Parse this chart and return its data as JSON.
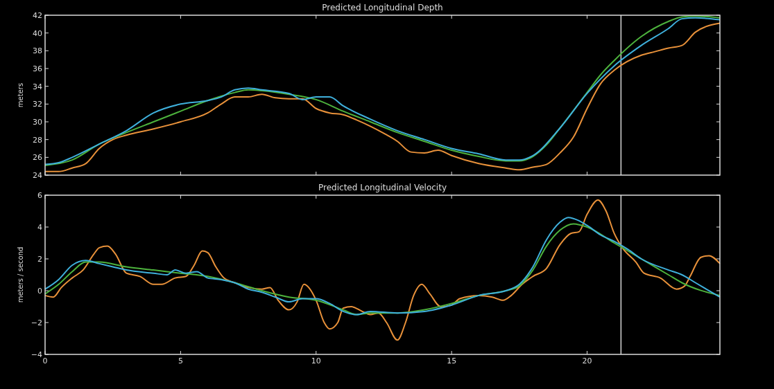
{
  "chart_data": [
    {
      "type": "line",
      "title": "Predicted Longitudinal Depth",
      "ylabel": "meters",
      "xlim": [
        0,
        24.9
      ],
      "xticks": [
        0,
        5,
        10,
        15,
        20
      ],
      "ylim": [
        24,
        42
      ],
      "yticks": [
        24,
        26,
        28,
        30,
        32,
        34,
        36,
        38,
        40,
        42
      ],
      "tick_labels": "y",
      "grid": false,
      "marker": "none",
      "line_style": "solid",
      "ref_lines": [
        {
          "axis": "x",
          "value": 21.25,
          "color": "#d8d8d8"
        }
      ],
      "series": [
        {
          "color": "#e8913a",
          "x": [
            0,
            0.5,
            1,
            1.5,
            2,
            2.5,
            3,
            4,
            5,
            6,
            6.5,
            7,
            7.5,
            8,
            8.5,
            9,
            9.5,
            10,
            10.5,
            11,
            11.5,
            12,
            12.5,
            13,
            13.5,
            14,
            14.5,
            15,
            16,
            17,
            17.5,
            18,
            18.5,
            19,
            19.5,
            20,
            20.5,
            21,
            22,
            22.5,
            23,
            23.5,
            24,
            24.9
          ],
          "values": [
            24.4,
            24.4,
            24.8,
            25.3,
            27,
            28,
            28.5,
            29.2,
            30,
            31,
            32,
            32.8,
            32.8,
            33.1,
            32.7,
            32.6,
            32.6,
            31.5,
            31,
            30.8,
            30.2,
            29.5,
            28.7,
            27.8,
            26.6,
            26.5,
            26.8,
            26.2,
            25.3,
            24.8,
            24.6,
            24.9,
            25.2,
            26.5,
            28.3,
            31.5,
            34.3,
            35.8,
            37.5,
            37.9,
            38.3,
            38.6,
            40.1,
            41.1
          ]
        },
        {
          "color": "#4db33d",
          "x": [
            0,
            1,
            2,
            3,
            4,
            5,
            6,
            7,
            7.5,
            8,
            9,
            10,
            11,
            12,
            13,
            14,
            15,
            16,
            17,
            17.5,
            18,
            18.5,
            19,
            20,
            20.5,
            21,
            22,
            23,
            23.5,
            24,
            24.9
          ],
          "values": [
            25.1,
            25.7,
            27.5,
            28.8,
            30,
            31.2,
            32.4,
            33.3,
            33.6,
            33.5,
            33.1,
            32.5,
            31.2,
            30,
            28.8,
            27.8,
            26.8,
            26.1,
            25.6,
            25.6,
            26.1,
            27.4,
            29.3,
            33.3,
            35.3,
            36.9,
            39.6,
            41.3,
            41.8,
            41.9,
            41.7
          ]
        },
        {
          "color": "#3fb0dc",
          "x": [
            0,
            0.5,
            1,
            2,
            3,
            4,
            5,
            6,
            6.5,
            7,
            7.5,
            8,
            9,
            9.5,
            10,
            10.5,
            11,
            12,
            13,
            14,
            15,
            16,
            17,
            17.5,
            18,
            19,
            20,
            21,
            22,
            23,
            23.5,
            24,
            24.9
          ],
          "values": [
            25.2,
            25.4,
            26,
            27.5,
            29,
            31,
            32,
            32.4,
            32.8,
            33.6,
            33.8,
            33.6,
            33.2,
            32.5,
            32.8,
            32.8,
            31.8,
            30.3,
            29,
            28,
            27,
            26.4,
            25.7,
            25.7,
            26.2,
            29.3,
            33.2,
            36.3,
            38.6,
            40.5,
            41.6,
            41.7,
            41.5
          ]
        }
      ]
    },
    {
      "type": "line",
      "title": "Predicted Longitudinal Velocity",
      "ylabel": "meters / second",
      "xlim": [
        0,
        24.9
      ],
      "xticks": [
        0,
        5,
        10,
        15,
        20
      ],
      "ylim": [
        -4,
        6
      ],
      "yticks": [
        -4,
        -2,
        0,
        2,
        4,
        6
      ],
      "grid": false,
      "marker": "none",
      "line_style": "solid",
      "ref_lines": [
        {
          "axis": "x",
          "value": 21.25,
          "color": "#d8d8d8"
        }
      ],
      "series": [
        {
          "color": "#e8913a",
          "x": [
            0,
            0.3,
            0.6,
            1,
            1.4,
            1.8,
            2,
            2.3,
            2.6,
            3,
            3.5,
            4,
            4.3,
            4.8,
            5.2,
            5.5,
            5.8,
            6,
            6.3,
            6.6,
            7,
            7.5,
            8,
            8.3,
            8.6,
            9,
            9.3,
            9.55,
            10,
            10.3,
            10.5,
            10.8,
            11,
            11.3,
            11.7,
            12,
            12.3,
            12.6,
            13,
            13.3,
            13.6,
            13.9,
            14.2,
            14.6,
            15,
            15.3,
            16,
            16.5,
            16.9,
            17.2,
            17.6,
            18,
            18.5,
            19,
            19.4,
            19.7,
            20,
            20.4,
            20.7,
            21,
            21.3,
            21.8,
            22.1,
            22.7,
            23.3,
            23.6,
            23.8,
            24.2,
            24.5,
            24.9
          ],
          "values": [
            -0.3,
            -0.4,
            0.2,
            0.8,
            1.3,
            2.3,
            2.7,
            2.8,
            2.3,
            1.1,
            0.9,
            0.4,
            0.4,
            0.8,
            0.9,
            1.6,
            2.5,
            2.4,
            1.5,
            0.8,
            0.5,
            0.2,
            0.1,
            0.2,
            -0.6,
            -1.2,
            -0.7,
            0.4,
            -0.6,
            -2,
            -2.4,
            -2,
            -1.1,
            -1,
            -1.3,
            -1.5,
            -1.4,
            -2,
            -3.1,
            -2,
            -0.3,
            0.4,
            -0.2,
            -1,
            -0.9,
            -0.5,
            -0.3,
            -0.4,
            -0.6,
            -0.3,
            0.4,
            0.9,
            1.4,
            2.9,
            3.6,
            3.7,
            4.8,
            5.7,
            5,
            3.6,
            2.7,
            1.8,
            1.1,
            0.8,
            0.1,
            0.3,
            0.9,
            2.1,
            2.2,
            1.7
          ]
        },
        {
          "color": "#4db33d",
          "x": [
            0,
            0.5,
            1,
            1.5,
            2,
            3,
            4,
            5,
            6,
            7,
            8,
            9,
            10,
            11,
            11.5,
            12,
            13,
            14,
            15,
            16,
            17,
            17.5,
            18,
            18.5,
            19,
            19.5,
            20,
            21,
            22,
            23,
            23.5,
            24.9
          ],
          "values": [
            -0.2,
            0.4,
            1.2,
            1.8,
            1.8,
            1.5,
            1.3,
            1.1,
            0.9,
            0.5,
            0,
            -0.4,
            -0.6,
            -1.2,
            -1.5,
            -1.4,
            -1.4,
            -1.2,
            -0.8,
            -0.3,
            0,
            0.3,
            1.3,
            2.8,
            3.8,
            4.2,
            4,
            3,
            2,
            1,
            0.5,
            -0.3
          ]
        },
        {
          "color": "#3fb0dc",
          "x": [
            0,
            0.5,
            1,
            1.5,
            2,
            2.5,
            3,
            4,
            4.5,
            4.8,
            5.2,
            5.6,
            6,
            6.5,
            7,
            7.5,
            8,
            8.5,
            9,
            9.5,
            10,
            10.5,
            11,
            11.5,
            12,
            13,
            14,
            15,
            16,
            17,
            17.5,
            18,
            18.5,
            19,
            19.3,
            19.7,
            20,
            20.5,
            21,
            21.5,
            22,
            23,
            23.5,
            24,
            24.9
          ],
          "values": [
            0.1,
            0.7,
            1.6,
            1.9,
            1.7,
            1.5,
            1.3,
            1.1,
            1,
            1.3,
            1.1,
            1.2,
            0.8,
            0.7,
            0.5,
            0.1,
            -0.1,
            -0.4,
            -0.7,
            -0.5,
            -0.5,
            -0.8,
            -1.3,
            -1.5,
            -1.3,
            -1.4,
            -1.3,
            -0.9,
            -0.3,
            0,
            0.4,
            1.5,
            3.2,
            4.3,
            4.6,
            4.4,
            4.1,
            3.5,
            3.1,
            2.6,
            2,
            1.3,
            1,
            0.5,
            -0.4
          ]
        }
      ]
    }
  ]
}
